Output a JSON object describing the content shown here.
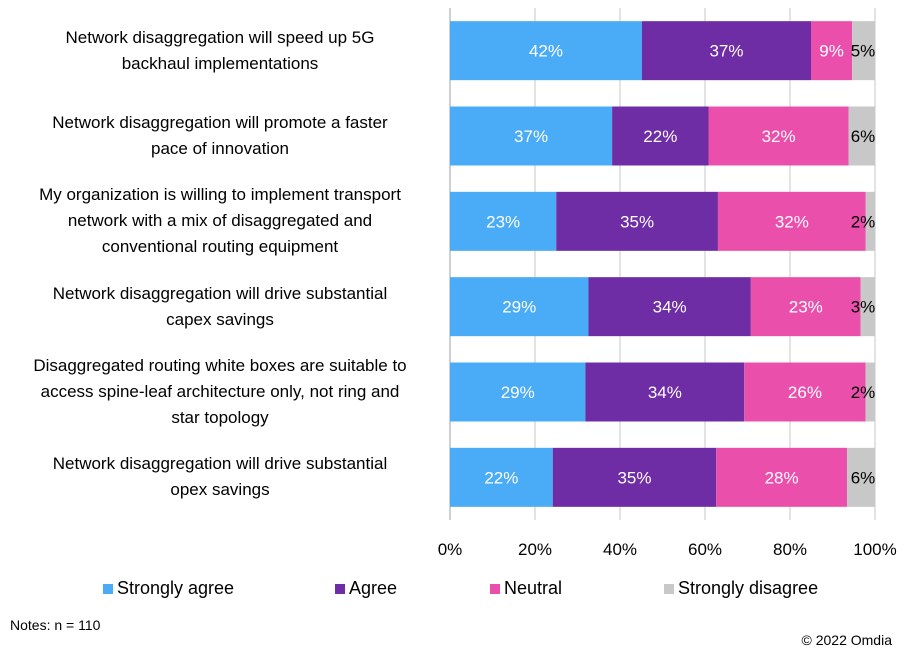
{
  "chart_data": {
    "type": "bar",
    "orientation": "horizontal",
    "stacked": true,
    "normalized_to_percent": true,
    "categories": [
      "Network disaggregation will speed up 5G backhaul implementations",
      "Network disaggregation will promote a faster pace of innovation",
      "My organization is willing to implement transport network with a mix of disaggregated and conventional routing equipment",
      "Network disaggregation will drive substantial capex savings",
      "Disaggregated routing white boxes are suitable to access spine-leaf architecture only, not ring and star topology",
      "Network disaggregation will drive substantial opex savings"
    ],
    "category_lines": [
      [
        "Network disaggregation will speed up 5G",
        "backhaul implementations"
      ],
      [
        "Network disaggregation will promote a faster",
        "pace of innovation"
      ],
      [
        "My organization is willing to implement transport",
        "network with a mix of disaggregated and",
        "conventional routing equipment"
      ],
      [
        "Network disaggregation will drive substantial",
        "capex savings"
      ],
      [
        "Disaggregated routing white boxes are suitable to",
        "access spine-leaf architecture only, not ring and",
        "star topology"
      ],
      [
        "Network disaggregation will drive substantial",
        "opex savings"
      ]
    ],
    "series": [
      {
        "name": "Strongly agree",
        "color": "#4aabf7",
        "label_color": "#ffffff",
        "values": [
          42,
          37,
          23,
          29,
          29,
          22
        ]
      },
      {
        "name": "Agree",
        "color": "#6e2ca5",
        "label_color": "#ffffff",
        "values": [
          37,
          22,
          35,
          34,
          34,
          35
        ]
      },
      {
        "name": "Neutral",
        "color": "#eb4fac",
        "label_color": "#ffffff",
        "values": [
          9,
          32,
          32,
          23,
          26,
          28
        ]
      },
      {
        "name": "Strongly disagree",
        "color": "#c8c8c8",
        "label_color": "#000000",
        "values": [
          5,
          6,
          2,
          3,
          2,
          6
        ]
      }
    ],
    "data_label_suffix": "%",
    "xlabel": "",
    "ylabel": "",
    "xlim": [
      0,
      100
    ],
    "x_ticks": [
      "0%",
      "20%",
      "40%",
      "60%",
      "80%",
      "100%"
    ],
    "x_tick_values": [
      0,
      20,
      40,
      60,
      80,
      100
    ],
    "grid": true,
    "legend_position": "bottom"
  },
  "notes": "Notes: n = 110",
  "copyright": "© 2022 Omdia"
}
